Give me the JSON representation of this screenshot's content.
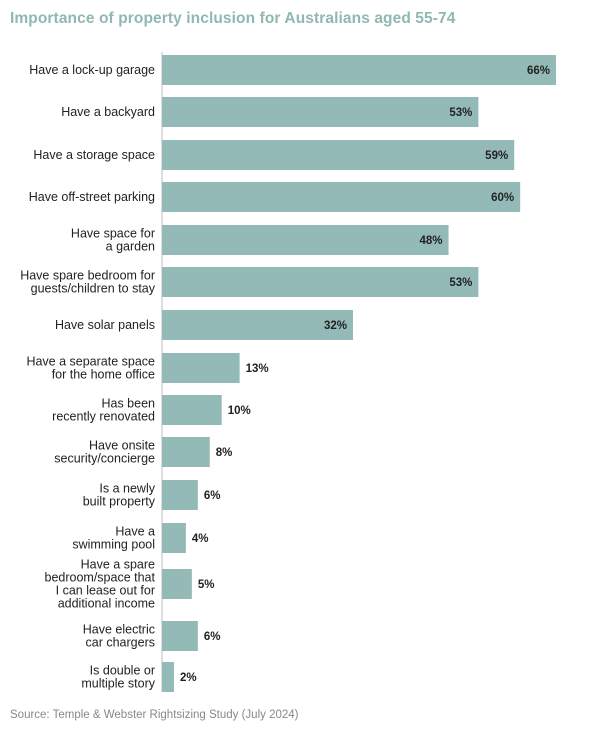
{
  "chart_data": {
    "type": "bar",
    "orientation": "horizontal",
    "title": "Importance of property inclusion for Australians aged 55-74",
    "categories": [
      [
        "Have a lock-up garage"
      ],
      [
        "Have a backyard"
      ],
      [
        "Have a storage space"
      ],
      [
        "Have off-street parking"
      ],
      [
        "Have space for",
        "a garden"
      ],
      [
        "Have spare bedroom for",
        "guests/children to stay"
      ],
      [
        "Have solar panels"
      ],
      [
        "Have a separate space",
        "for the home office"
      ],
      [
        "Has been",
        "recently renovated"
      ],
      [
        "Have onsite",
        "security/concierge"
      ],
      [
        "Is a newly",
        "built property"
      ],
      [
        "Have a",
        "swimming pool"
      ],
      [
        "Have a spare",
        "bedroom/space that",
        "I can lease out for",
        "additional income"
      ],
      [
        "Have electric",
        "car chargers"
      ],
      [
        "Is double or",
        "multiple story"
      ]
    ],
    "values": [
      66,
      53,
      59,
      60,
      48,
      53,
      32,
      13,
      10,
      8,
      6,
      4,
      5,
      6,
      2
    ],
    "value_labels": [
      "66%",
      "53%",
      "59%",
      "60%",
      "48%",
      "53%",
      "32%",
      "13%",
      "10%",
      "8%",
      "6%",
      "4%",
      "5%",
      "6%",
      "2%"
    ],
    "xlim": [
      0,
      66
    ],
    "bar_color": "#93bab6",
    "source": "Source: Temple & Webster Rightsizing Study (July 2024)"
  }
}
